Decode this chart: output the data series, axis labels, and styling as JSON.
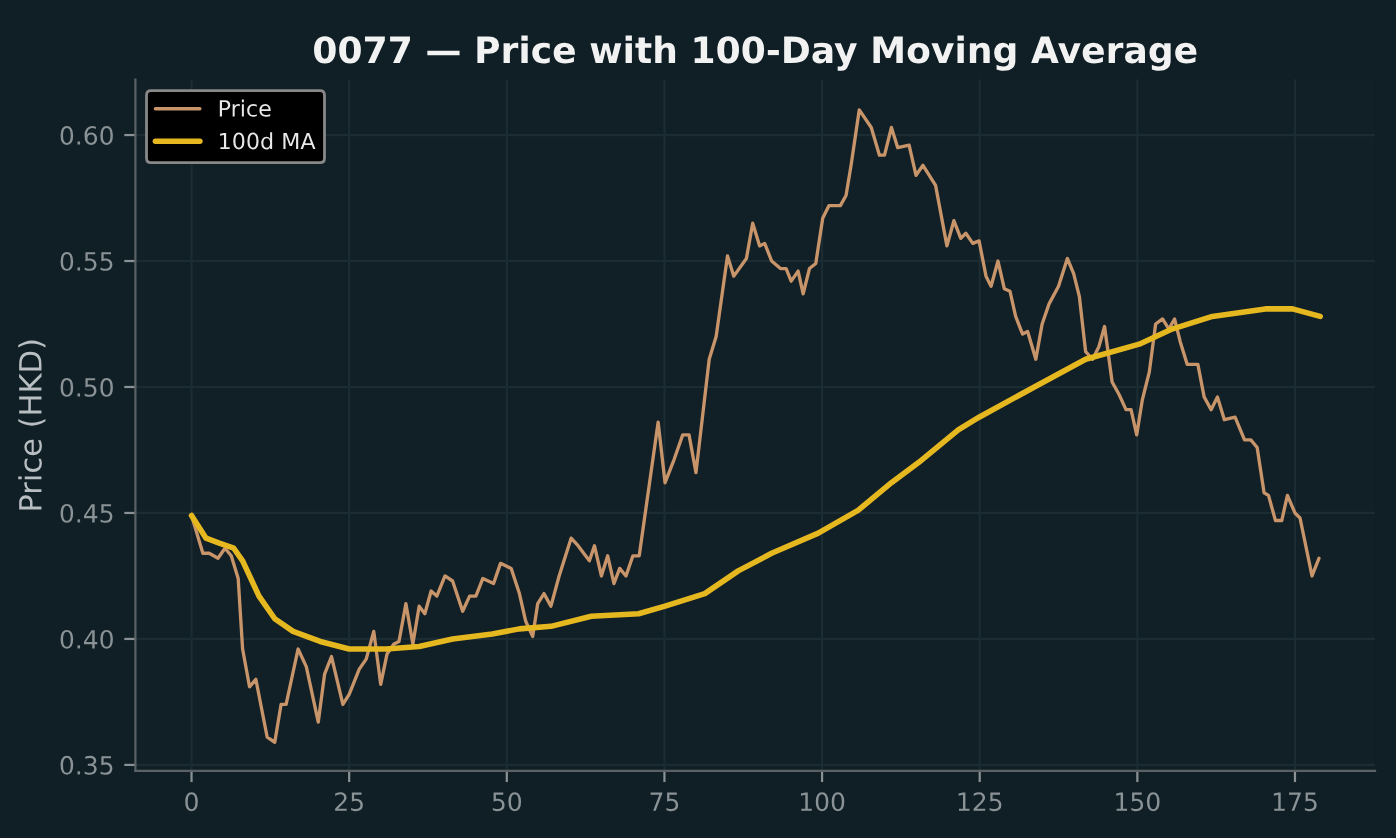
{
  "chart_data": {
    "type": "line",
    "title": "0077 — Price with 100-Day Moving Average",
    "ylabel": "Price (HKD)",
    "xlim": [
      -8.9,
      187.7
    ],
    "ylim": [
      0.3476,
      0.622
    ],
    "xticks": [
      0,
      25,
      50,
      75,
      100,
      125,
      150,
      175
    ],
    "yticks": [
      {
        "value": 0.35,
        "label": "0.35"
      },
      {
        "value": 0.4,
        "label": "0.40"
      },
      {
        "value": 0.45,
        "label": "0.45"
      },
      {
        "value": 0.5,
        "label": "0.50"
      },
      {
        "value": 0.55,
        "label": "0.55"
      },
      {
        "value": 0.6,
        "label": "0.60"
      }
    ],
    "grid": true,
    "legend": "top left",
    "series": [
      {
        "name": "Price",
        "color": "#c8956a",
        "x": [
          0,
          1.8,
          2.8,
          4.2,
          5.3,
          6.3,
          7.4,
          8.1,
          9.2,
          10.2,
          12,
          13.2,
          14.2,
          15,
          16.9,
          18.2,
          20.1,
          21.1,
          22.2,
          24,
          25,
          26.6,
          27.7,
          28.9,
          30,
          31,
          32.1,
          32.9,
          34,
          35.1,
          36.1,
          37,
          38,
          38.9,
          40.2,
          41.4,
          43,
          44.1,
          45.1,
          46.2,
          47.9,
          49,
          50.7,
          52,
          53,
          54.1,
          54.9,
          55.9,
          57,
          58.3,
          60.2,
          61.3,
          63.1,
          63.9,
          65,
          66,
          67,
          67.9,
          68.9,
          70,
          71,
          74,
          75.1,
          76.5,
          77.9,
          78.9,
          80,
          82.1,
          83.2,
          85,
          86,
          88,
          89,
          90.1,
          90.9,
          92,
          93.4,
          94.3,
          95.1,
          96.2,
          97,
          98,
          99,
          100.1,
          101.1,
          102.9,
          103.8,
          104.6,
          105.9,
          107.8,
          109.1,
          109.9,
          111,
          112,
          113.8,
          114.9,
          116,
          118,
          119.8,
          120.9,
          122,
          122.8,
          123.9,
          124.9,
          126,
          126.8,
          127.9,
          128.9,
          129.8,
          130.7,
          131.8,
          132.6,
          133.9,
          134.9,
          136,
          137.5,
          138.9,
          139.9,
          140.8,
          141.8,
          142.9,
          143.9,
          144.8,
          146,
          147.1,
          148.2,
          149,
          149.9,
          150.8,
          151.9,
          152.9,
          154,
          155,
          155.9,
          156.8,
          157.9,
          159.6,
          160.6,
          161.7,
          162.7,
          163.8,
          165.5,
          167,
          168,
          169,
          170.1,
          170.8,
          171.9,
          172.9,
          173.8,
          175,
          175.8,
          177.7,
          178.8
        ],
        "values": [
          0.449,
          0.434,
          0.434,
          0.432,
          0.436,
          0.433,
          0.424,
          0.396,
          0.381,
          0.384,
          0.361,
          0.359,
          0.374,
          0.374,
          0.396,
          0.389,
          0.367,
          0.386,
          0.393,
          0.374,
          0.378,
          0.388,
          0.392,
          0.403,
          0.382,
          0.394,
          0.398,
          0.399,
          0.414,
          0.398,
          0.413,
          0.41,
          0.419,
          0.417,
          0.425,
          0.423,
          0.411,
          0.417,
          0.417,
          0.424,
          0.422,
          0.43,
          0.428,
          0.418,
          0.407,
          0.401,
          0.414,
          0.418,
          0.413,
          0.425,
          0.44,
          0.437,
          0.431,
          0.437,
          0.425,
          0.433,
          0.422,
          0.428,
          0.425,
          0.433,
          0.433,
          0.486,
          0.462,
          0.471,
          0.481,
          0.481,
          0.466,
          0.511,
          0.52,
          0.552,
          0.544,
          0.551,
          0.565,
          0.556,
          0.557,
          0.55,
          0.547,
          0.547,
          0.542,
          0.546,
          0.537,
          0.547,
          0.549,
          0.567,
          0.572,
          0.572,
          0.576,
          0.588,
          0.61,
          0.603,
          0.592,
          0.592,
          0.603,
          0.595,
          0.596,
          0.584,
          0.588,
          0.58,
          0.556,
          0.566,
          0.559,
          0.561,
          0.557,
          0.558,
          0.544,
          0.54,
          0.55,
          0.539,
          0.538,
          0.528,
          0.521,
          0.522,
          0.511,
          0.525,
          0.533,
          0.54,
          0.551,
          0.545,
          0.536,
          0.514,
          0.511,
          0.516,
          0.524,
          0.502,
          0.497,
          0.491,
          0.491,
          0.481,
          0.495,
          0.506,
          0.525,
          0.527,
          0.523,
          0.527,
          0.518,
          0.509,
          0.509,
          0.496,
          0.491,
          0.496,
          0.487,
          0.488,
          0.479,
          0.479,
          0.476,
          0.458,
          0.457,
          0.447,
          0.447,
          0.457,
          0.45,
          0.448,
          0.425,
          0.432
        ]
      },
      {
        "name": "100d MA",
        "color": "#e6b820",
        "x": [
          0,
          2.3,
          4.4,
          6.7,
          8.1,
          10.7,
          13.2,
          16.1,
          20.4,
          25,
          30.9,
          36.1,
          41.4,
          47.7,
          52,
          57,
          63.4,
          70.9,
          75.1,
          81.4,
          86.7,
          92,
          99.4,
          105.7,
          111,
          115.3,
          121.6,
          124.9,
          134.4,
          141.8,
          150.3,
          155.5,
          161.9,
          170.3,
          174.6,
          179
        ],
        "values": [
          0.449,
          0.44,
          0.438,
          0.436,
          0.431,
          0.417,
          0.408,
          0.403,
          0.399,
          0.396,
          0.396,
          0.397,
          0.4,
          0.402,
          0.404,
          0.405,
          0.409,
          0.41,
          0.413,
          0.418,
          0.427,
          0.434,
          0.442,
          0.451,
          0.462,
          0.47,
          0.483,
          0.488,
          0.501,
          0.511,
          0.517,
          0.523,
          0.528,
          0.531,
          0.531,
          0.528
        ]
      }
    ]
  }
}
